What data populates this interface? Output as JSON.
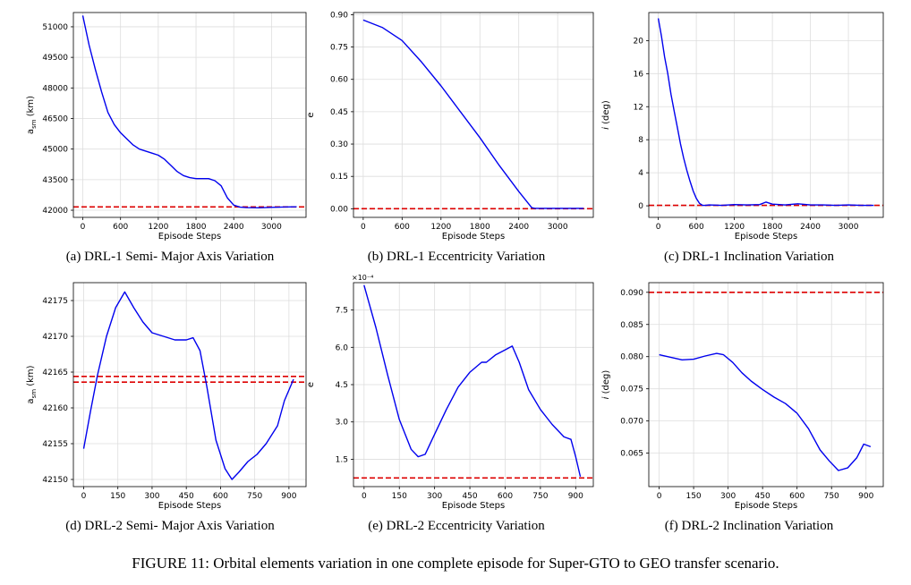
{
  "caption": "FIGURE 11: Orbital elements variation in one complete episode for Super-GTO to GEO transfer scenario.",
  "subcaptions": {
    "a": "(a)  DRL-1 Semi- Major Axis Variation",
    "b": "(b)  DRL-1 Eccentricity Variation",
    "c": "(c)  DRL-1 Inclination Variation",
    "d": "(d)  DRL-2 Semi- Major Axis Variation",
    "e": "(e)  DRL-2 Eccentricity Variation",
    "f": "(f)  DRL-2 Inclination Variation"
  },
  "colors": {
    "series": "#0000ee",
    "target": "#dd0000",
    "grid": "#dddddd"
  },
  "chart_data": [
    {
      "id": "a",
      "type": "line",
      "xlabel": "Episode Steps",
      "ylabel": "a_sm (km)",
      "xlim": [
        -150,
        3550
      ],
      "ylim": [
        41650,
        51700
      ],
      "xticks": [
        0,
        600,
        1200,
        1800,
        2400,
        3000
      ],
      "yticks": [
        42000,
        43500,
        45000,
        46500,
        48000,
        49500,
        51000
      ],
      "grid": true,
      "x": [
        0,
        100,
        200,
        300,
        400,
        500,
        600,
        700,
        800,
        900,
        1000,
        1100,
        1200,
        1300,
        1400,
        1500,
        1600,
        1700,
        1800,
        1900,
        2000,
        2100,
        2200,
        2300,
        2400,
        2500,
        2600,
        2800,
        3000,
        3200,
        3400
      ],
      "y": [
        51550,
        50100,
        48900,
        47800,
        46800,
        46200,
        45800,
        45500,
        45200,
        45000,
        44900,
        44800,
        44700,
        44500,
        44200,
        43900,
        43700,
        43600,
        43550,
        43550,
        43550,
        43450,
        43200,
        42600,
        42250,
        42150,
        42130,
        42120,
        42140,
        42160,
        42170
      ],
      "hlines": [
        42164
      ]
    },
    {
      "id": "b",
      "type": "line",
      "xlabel": "Episode Steps",
      "ylabel": "e",
      "xlim": [
        -150,
        3550
      ],
      "ylim": [
        -0.04,
        0.91
      ],
      "xticks": [
        0,
        600,
        1200,
        1800,
        2400,
        3000
      ],
      "yticks": [
        0.0,
        0.15,
        0.3,
        0.45,
        0.6,
        0.75,
        0.9
      ],
      "ytick_labels": [
        "0.00",
        "0.15",
        "0.30",
        "0.45",
        "0.60",
        "0.75",
        "0.90"
      ],
      "grid": true,
      "x": [
        0,
        300,
        600,
        900,
        1200,
        1500,
        1800,
        2100,
        2400,
        2600,
        2650,
        3000,
        3400
      ],
      "y": [
        0.875,
        0.84,
        0.78,
        0.68,
        0.57,
        0.45,
        0.33,
        0.2,
        0.08,
        0.005,
        0.002,
        0.002,
        0.002
      ],
      "hlines": [
        0.0
      ]
    },
    {
      "id": "c",
      "type": "line",
      "xlabel": "Episode Steps",
      "ylabel": "i (deg)",
      "xlim": [
        -150,
        3550
      ],
      "ylim": [
        -1.4,
        23.4
      ],
      "xticks": [
        0,
        600,
        1200,
        1800,
        2400,
        3000
      ],
      "yticks": [
        0,
        4,
        8,
        12,
        16,
        20
      ],
      "grid": true,
      "x": [
        0,
        50,
        100,
        150,
        200,
        250,
        300,
        350,
        400,
        450,
        500,
        550,
        600,
        650,
        700,
        750,
        800,
        1000,
        1200,
        1400,
        1600,
        1700,
        1800,
        2000,
        2200,
        2400,
        2600,
        2800,
        3000,
        3200,
        3400
      ],
      "y": [
        22.7,
        20.5,
        18.0,
        16.0,
        13.5,
        11.5,
        9.5,
        7.5,
        5.8,
        4.3,
        3.0,
        1.8,
        0.9,
        0.3,
        0.05,
        0.05,
        0.1,
        0.05,
        0.15,
        0.1,
        0.15,
        0.45,
        0.2,
        0.1,
        0.25,
        0.1,
        0.1,
        0.05,
        0.1,
        0.05,
        0.05
      ],
      "hlines": [
        0.05
      ]
    },
    {
      "id": "d",
      "type": "line",
      "xlabel": "Episode Steps",
      "ylabel": "a_sm (km)",
      "xlim": [
        -45,
        975
      ],
      "ylim": [
        42149,
        42177.5
      ],
      "xticks": [
        0,
        150,
        300,
        450,
        600,
        750,
        900
      ],
      "yticks": [
        42150,
        42155,
        42160,
        42165,
        42170,
        42175
      ],
      "grid": true,
      "x": [
        0,
        30,
        60,
        100,
        140,
        180,
        220,
        260,
        300,
        350,
        400,
        450,
        480,
        510,
        540,
        580,
        620,
        650,
        680,
        720,
        760,
        800,
        850,
        880,
        920
      ],
      "y": [
        42154.3,
        42159.5,
        42164.5,
        42170.0,
        42174.0,
        42176.2,
        42174.0,
        42172.0,
        42170.5,
        42170.0,
        42169.5,
        42169.5,
        42169.8,
        42168.0,
        42163.0,
        42155.5,
        42151.5,
        42150.0,
        42151.0,
        42152.5,
        42153.5,
        42155.0,
        42157.5,
        42161.0,
        42164.0
      ],
      "hlines": [
        42164.4,
        42163.6
      ]
    },
    {
      "id": "e",
      "type": "line",
      "xlabel": "Episode Steps",
      "ylabel": "e",
      "scale_label": "×10⁻⁴",
      "xlim": [
        -45,
        975
      ],
      "ylim": [
        0.4,
        8.6
      ],
      "xticks": [
        0,
        150,
        300,
        450,
        600,
        750,
        900
      ],
      "yticks": [
        1.5,
        3.0,
        4.5,
        6.0,
        7.5
      ],
      "ytick_labels": [
        "1.5",
        "3.0",
        "4.5",
        "6.0",
        "7.5"
      ],
      "grid": true,
      "x": [
        0,
        50,
        100,
        150,
        200,
        230,
        260,
        300,
        350,
        400,
        450,
        500,
        520,
        560,
        600,
        630,
        660,
        700,
        750,
        800,
        850,
        880,
        900,
        920
      ],
      "y": [
        8.5,
        6.8,
        4.9,
        3.1,
        1.9,
        1.6,
        1.7,
        2.5,
        3.5,
        4.4,
        5.0,
        5.4,
        5.4,
        5.7,
        5.9,
        6.05,
        5.4,
        4.3,
        3.5,
        2.9,
        2.4,
        2.3,
        1.6,
        0.8
      ],
      "hlines": [
        0.75
      ]
    },
    {
      "id": "f",
      "type": "line",
      "xlabel": "Episode Steps",
      "ylabel": "i (deg)",
      "xlim": [
        -45,
        975
      ],
      "ylim": [
        0.0598,
        0.0915
      ],
      "xticks": [
        0,
        150,
        300,
        450,
        600,
        750,
        900
      ],
      "yticks": [
        0.065,
        0.07,
        0.075,
        0.08,
        0.085,
        0.09
      ],
      "ytick_labels": [
        "0.065",
        "0.070",
        "0.075",
        "0.080",
        "0.085",
        "0.090"
      ],
      "grid": true,
      "x": [
        0,
        50,
        100,
        150,
        200,
        250,
        280,
        320,
        360,
        400,
        450,
        500,
        550,
        600,
        650,
        700,
        740,
        780,
        820,
        860,
        890,
        920
      ],
      "y": [
        0.0803,
        0.0799,
        0.0795,
        0.0796,
        0.0801,
        0.0805,
        0.0803,
        0.0791,
        0.0775,
        0.0762,
        0.0749,
        0.0737,
        0.0727,
        0.0712,
        0.0688,
        0.0655,
        0.0638,
        0.0623,
        0.0627,
        0.0643,
        0.0664,
        0.066
      ],
      "hlines": [
        0.09
      ]
    }
  ]
}
